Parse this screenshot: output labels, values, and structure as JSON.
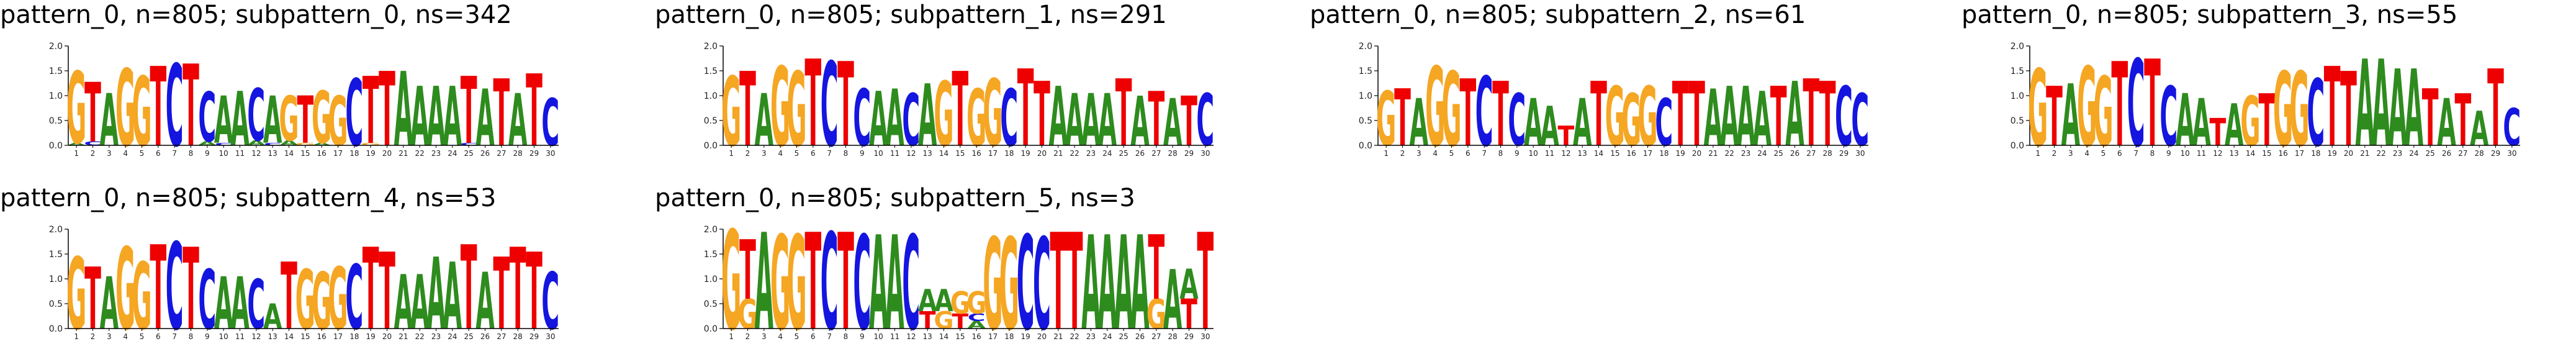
{
  "colors": {
    "A": "#2e8b1e",
    "C": "#1515e0",
    "G": "#f5a623",
    "T": "#ee0000"
  },
  "chart_data": [
    {
      "type": "sequence-logo",
      "title": "pattern_0, n=805; subpattern_0, ns=342",
      "ylim": [
        0,
        2.0
      ],
      "yticks": [
        "0.0",
        "0.5",
        "1.0",
        "1.5",
        "2.0"
      ],
      "positions": [
        "1",
        "2",
        "3",
        "4",
        "5",
        "6",
        "7",
        "8",
        "9",
        "10",
        "11",
        "12",
        "13",
        "14",
        "15",
        "16",
        "17",
        "18",
        "19",
        "20",
        "21",
        "22",
        "23",
        "24",
        "25",
        "26",
        "27",
        "28",
        "29",
        "30"
      ],
      "columns": [
        {
          "G": 1.45,
          "A": 0.05
        },
        {
          "T": 1.2,
          "C": 0.08
        },
        {
          "A": 1.05
        },
        {
          "G": 1.55
        },
        {
          "G": 1.4
        },
        {
          "T": 1.6
        },
        {
          "C": 1.65
        },
        {
          "T": 1.65
        },
        {
          "C": 1.0,
          "A": 0.08
        },
        {
          "A": 0.95,
          "C": 0.05
        },
        {
          "A": 1.1
        },
        {
          "C": 1.05,
          "A": 0.1
        },
        {
          "A": 0.95,
          "C": 0.05
        },
        {
          "G": 0.9,
          "A": 0.1
        },
        {
          "T": 0.95,
          "G": 0.05
        },
        {
          "G": 1.05,
          "A": 0.05
        },
        {
          "G": 1.0
        },
        {
          "C": 1.35
        },
        {
          "T": 1.35,
          "G": 0.05
        },
        {
          "T": 1.5
        },
        {
          "A": 1.5
        },
        {
          "A": 1.2
        },
        {
          "A": 1.2
        },
        {
          "A": 1.2
        },
        {
          "T": 1.35,
          "C": 0.05
        },
        {
          "A": 1.15
        },
        {
          "T": 1.35
        },
        {
          "A": 1.05
        },
        {
          "T": 1.45
        },
        {
          "C": 0.95
        }
      ]
    },
    {
      "type": "sequence-logo",
      "title": "pattern_0, n=805; subpattern_1, ns=291",
      "ylim": [
        0,
        2.0
      ],
      "yticks": [
        "0.0",
        "0.5",
        "1.0",
        "1.5",
        "2.0"
      ],
      "positions": [
        "1",
        "2",
        "3",
        "4",
        "5",
        "6",
        "7",
        "8",
        "9",
        "10",
        "11",
        "12",
        "13",
        "14",
        "15",
        "16",
        "17",
        "18",
        "19",
        "20",
        "21",
        "22",
        "23",
        "24",
        "25",
        "26",
        "27",
        "28",
        "29",
        "30"
      ],
      "columns": [
        {
          "G": 1.4
        },
        {
          "T": 1.5
        },
        {
          "A": 1.05
        },
        {
          "G": 1.6
        },
        {
          "G": 1.5
        },
        {
          "T": 1.75
        },
        {
          "C": 1.7
        },
        {
          "T": 1.7
        },
        {
          "C": 1.15
        },
        {
          "A": 1.1
        },
        {
          "A": 1.15
        },
        {
          "C": 1.05
        },
        {
          "A": 1.25
        },
        {
          "G": 1.3
        },
        {
          "T": 1.5
        },
        {
          "G": 1.15
        },
        {
          "G": 1.35
        },
        {
          "C": 1.15
        },
        {
          "T": 1.55
        },
        {
          "T": 1.3
        },
        {
          "A": 1.2
        },
        {
          "A": 1.05
        },
        {
          "A": 1.05
        },
        {
          "A": 1.05
        },
        {
          "T": 1.35
        },
        {
          "A": 1.0
        },
        {
          "T": 1.1
        },
        {
          "A": 0.95
        },
        {
          "T": 1.0
        },
        {
          "C": 1.05
        }
      ]
    },
    {
      "type": "sequence-logo",
      "title": "pattern_0, n=805; subpattern_2, ns=61",
      "ylim": [
        0,
        2.0
      ],
      "yticks": [
        "0.0",
        "0.5",
        "1.0",
        "1.5",
        "2.0"
      ],
      "positions": [
        "1",
        "2",
        "3",
        "4",
        "5",
        "6",
        "7",
        "8",
        "9",
        "10",
        "11",
        "12",
        "13",
        "14",
        "15",
        "16",
        "17",
        "18",
        "19",
        "20",
        "21",
        "22",
        "23",
        "24",
        "25",
        "26",
        "27",
        "28",
        "29",
        "30"
      ],
      "columns": [
        {
          "G": 1.1
        },
        {
          "T": 1.15
        },
        {
          "A": 0.95
        },
        {
          "G": 1.6
        },
        {
          "G": 1.5
        },
        {
          "T": 1.35
        },
        {
          "C": 1.4
        },
        {
          "T": 1.3
        },
        {
          "C": 1.05
        },
        {
          "A": 0.95
        },
        {
          "A": 0.8
        },
        {
          "T": 0.4
        },
        {
          "A": 0.95
        },
        {
          "T": 1.3
        },
        {
          "G": 1.2
        },
        {
          "G": 1.05
        },
        {
          "G": 1.2
        },
        {
          "C": 0.95
        },
        {
          "T": 1.3
        },
        {
          "T": 1.3
        },
        {
          "A": 1.15
        },
        {
          "A": 1.2
        },
        {
          "A": 1.2
        },
        {
          "A": 1.1
        },
        {
          "T": 1.2
        },
        {
          "A": 1.3
        },
        {
          "T": 1.35
        },
        {
          "T": 1.3
        },
        {
          "C": 1.2
        },
        {
          "C": 1.05
        }
      ]
    },
    {
      "type": "sequence-logo",
      "title": "pattern_0, n=805; subpattern_3, ns=55",
      "ylim": [
        0,
        2.0
      ],
      "yticks": [
        "0.0",
        "0.5",
        "1.0",
        "1.5",
        "2.0"
      ],
      "positions": [
        "1",
        "2",
        "3",
        "4",
        "5",
        "6",
        "7",
        "8",
        "9",
        "10",
        "11",
        "12",
        "13",
        "14",
        "15",
        "16",
        "17",
        "18",
        "19",
        "20",
        "21",
        "22",
        "23",
        "24",
        "25",
        "26",
        "27",
        "28",
        "29",
        "30"
      ],
      "columns": [
        {
          "G": 1.55
        },
        {
          "T": 1.2
        },
        {
          "A": 1.25
        },
        {
          "G": 1.6
        },
        {
          "G": 1.4
        },
        {
          "T": 1.7
        },
        {
          "C": 1.75
        },
        {
          "T": 1.75
        },
        {
          "C": 1.2
        },
        {
          "A": 1.05
        },
        {
          "A": 0.95
        },
        {
          "T": 0.55
        },
        {
          "A": 0.85
        },
        {
          "G": 1.0
        },
        {
          "T": 1.05
        },
        {
          "G": 1.5
        },
        {
          "G": 1.5
        },
        {
          "C": 1.35
        },
        {
          "T": 1.6
        },
        {
          "T": 1.5
        },
        {
          "A": 1.75
        },
        {
          "A": 1.75
        },
        {
          "A": 1.55
        },
        {
          "A": 1.55
        },
        {
          "T": 1.15
        },
        {
          "A": 0.95
        },
        {
          "T": 1.05
        },
        {
          "A": 0.7
        },
        {
          "T": 1.55
        },
        {
          "C": 0.75
        }
      ]
    },
    {
      "type": "sequence-logo",
      "title": "pattern_0, n=805; subpattern_4, ns=53",
      "ylim": [
        0,
        2.0
      ],
      "yticks": [
        "0.0",
        "0.5",
        "1.0",
        "1.5",
        "2.0"
      ],
      "positions": [
        "1",
        "2",
        "3",
        "4",
        "5",
        "6",
        "7",
        "8",
        "9",
        "10",
        "11",
        "12",
        "13",
        "14",
        "15",
        "16",
        "17",
        "18",
        "19",
        "20",
        "21",
        "22",
        "23",
        "24",
        "25",
        "26",
        "27",
        "28",
        "29",
        "30"
      ],
      "columns": [
        {
          "G": 1.45
        },
        {
          "T": 1.25
        },
        {
          "A": 1.05
        },
        {
          "G": 1.65
        },
        {
          "G": 1.35
        },
        {
          "T": 1.7
        },
        {
          "C": 1.75
        },
        {
          "T": 1.65
        },
        {
          "C": 1.2
        },
        {
          "A": 1.05
        },
        {
          "A": 1.05
        },
        {
          "C": 1.0
        },
        {
          "A": 0.5
        },
        {
          "T": 1.35
        },
        {
          "G": 1.2
        },
        {
          "G": 1.15
        },
        {
          "G": 1.25
        },
        {
          "C": 1.3
        },
        {
          "T": 1.65
        },
        {
          "T": 1.55
        },
        {
          "A": 1.1
        },
        {
          "A": 1.1
        },
        {
          "A": 1.45
        },
        {
          "A": 1.35
        },
        {
          "T": 1.7
        },
        {
          "A": 1.15
        },
        {
          "T": 1.45
        },
        {
          "T": 1.65
        },
        {
          "T": 1.55
        },
        {
          "C": 1.15
        }
      ]
    },
    {
      "type": "sequence-logo",
      "title": "pattern_0, n=805; subpattern_5, ns=3",
      "ylim": [
        0,
        2.0
      ],
      "yticks": [
        "0.0",
        "0.5",
        "1.0",
        "1.5",
        "2.0"
      ],
      "positions": [
        "1",
        "2",
        "3",
        "4",
        "5",
        "6",
        "7",
        "8",
        "9",
        "10",
        "11",
        "12",
        "13",
        "14",
        "15",
        "16",
        "17",
        "18",
        "19",
        "20",
        "21",
        "22",
        "23",
        "24",
        "25",
        "26",
        "27",
        "28",
        "29",
        "30"
      ],
      "columns": [
        {
          "G": 2.0
        },
        {
          "T": 1.2,
          "G": 0.6
        },
        {
          "A": 1.95
        },
        {
          "G": 1.9
        },
        {
          "G": 1.9
        },
        {
          "T": 1.95
        },
        {
          "C": 1.95
        },
        {
          "T": 1.95
        },
        {
          "C": 1.9
        },
        {
          "A": 1.9
        },
        {
          "A": 1.9
        },
        {
          "C": 1.9
        },
        {
          "A": 0.45,
          "T": 0.35
        },
        {
          "A": 0.45,
          "G": 0.35
        },
        {
          "G": 0.45,
          "T": 0.3
        },
        {
          "G": 0.45,
          "A": 0.15,
          "C": 0.15
        },
        {
          "G": 1.85
        },
        {
          "G": 1.85
        },
        {
          "C": 1.9
        },
        {
          "C": 1.85
        },
        {
          "T": 1.95
        },
        {
          "T": 1.95
        },
        {
          "A": 1.9
        },
        {
          "A": 1.9
        },
        {
          "A": 1.9
        },
        {
          "A": 1.9
        },
        {
          "T": 1.3,
          "G": 0.6
        },
        {
          "A": 1.2,
          "A2": 0
        },
        {
          "T": 0.6,
          "A": 0.6
        },
        {
          "T": 1.95
        }
      ]
    }
  ]
}
